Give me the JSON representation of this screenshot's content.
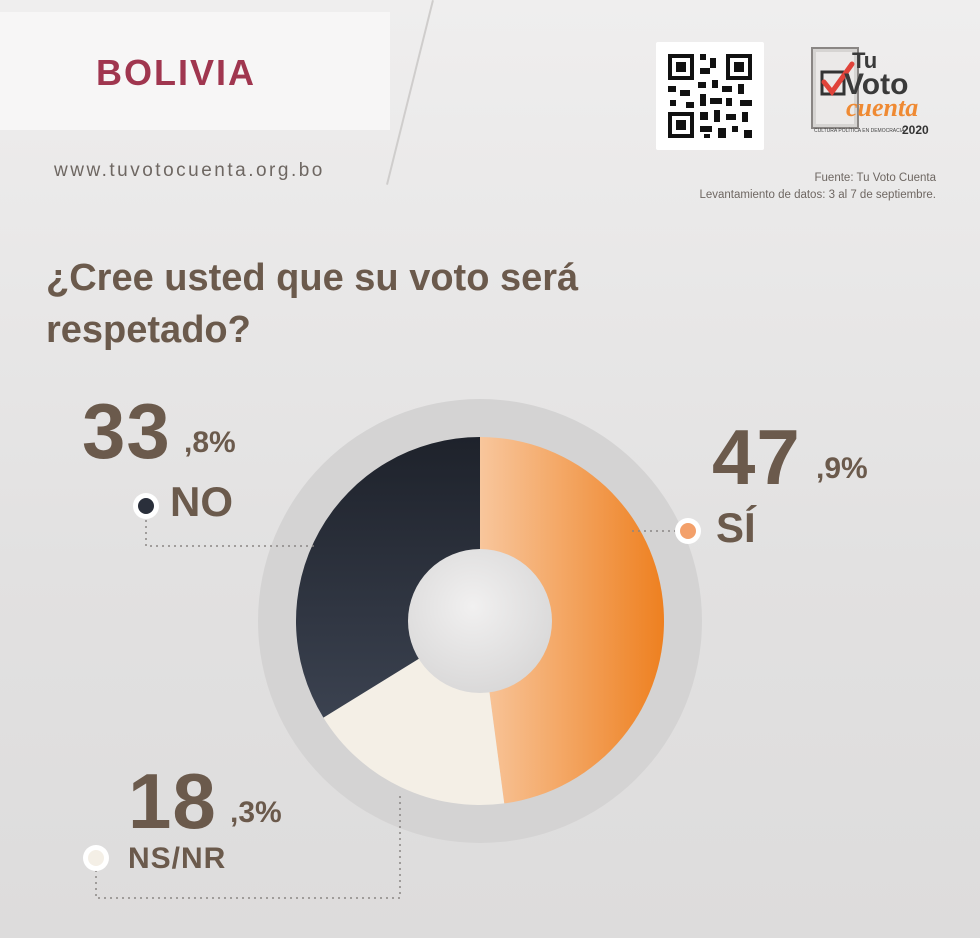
{
  "header": {
    "country": "BOLIVIA",
    "website": "www.tuvotocuenta.org.bo",
    "logo": {
      "line1": "Tu",
      "line2": "Voto",
      "line3": "cuenta",
      "year": "2020",
      "tagline": "CULTURA POLÍTICA EN DEMOCRACIA"
    },
    "source": "Fuente: Tu Voto Cuenta",
    "dates": "Levantamiento de datos: 3 al 7 de septiembre."
  },
  "colors": {
    "brand": "#a0364f",
    "text": "#6b5a4c",
    "si": "#ef8a33",
    "no": "#2a2f3b",
    "nsnr": "#f4efe6"
  },
  "chart_data": {
    "type": "pie",
    "title": "¿Cree usted que su voto será respetado?",
    "slices": [
      {
        "label": "SÍ",
        "value": 47.9,
        "whole": "47",
        "decimal": ",9%",
        "color": "#ef8a33"
      },
      {
        "label": "NS/NR",
        "value": 18.3,
        "whole": "18",
        "decimal": ",3%",
        "color": "#f4efe6"
      },
      {
        "label": "NO",
        "value": 33.8,
        "whole": "33",
        "decimal": ",8%",
        "color": "#2a2f3b"
      }
    ]
  }
}
